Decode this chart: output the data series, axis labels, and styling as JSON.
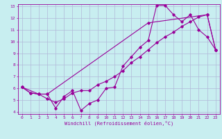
{
  "xlabel": "Windchill (Refroidissement éolien,°C)",
  "background_color": "#c8eef0",
  "grid_color": "#b0b8d8",
  "line_color": "#990099",
  "xlim": [
    -0.5,
    23.5
  ],
  "ylim": [
    3.8,
    13.2
  ],
  "xticks": [
    0,
    1,
    2,
    3,
    4,
    5,
    6,
    7,
    8,
    9,
    10,
    11,
    12,
    13,
    14,
    15,
    16,
    17,
    18,
    19,
    20,
    21,
    22,
    23
  ],
  "yticks": [
    4,
    5,
    6,
    7,
    8,
    9,
    10,
    11,
    12,
    13
  ],
  "line1_x": [
    0,
    1,
    2,
    3,
    4,
    5,
    6,
    7,
    8,
    9,
    10,
    11,
    12,
    13,
    14,
    15,
    16,
    17,
    18,
    19,
    20,
    21,
    22,
    23
  ],
  "line1_y": [
    6.1,
    5.6,
    5.5,
    5.5,
    4.3,
    5.3,
    5.8,
    4.1,
    4.7,
    5.0,
    6.0,
    6.1,
    7.9,
    8.7,
    9.5,
    10.1,
    13.1,
    13.1,
    12.3,
    11.7,
    12.3,
    11.0,
    10.4,
    9.3
  ],
  "line2_x": [
    0,
    1,
    2,
    3,
    4,
    5,
    6,
    7,
    8,
    9,
    10,
    11,
    12,
    13,
    14,
    15,
    16,
    17,
    18,
    19,
    20,
    21,
    22,
    23
  ],
  "line2_y": [
    6.1,
    5.6,
    5.5,
    5.1,
    4.8,
    5.1,
    5.6,
    5.8,
    5.8,
    6.3,
    6.6,
    7.0,
    7.5,
    8.2,
    8.7,
    9.3,
    9.9,
    10.4,
    10.8,
    11.3,
    11.7,
    12.1,
    12.3,
    9.3
  ],
  "line3_x": [
    0,
    2,
    3,
    15,
    22,
    23
  ],
  "line3_y": [
    6.1,
    5.5,
    5.5,
    11.6,
    12.3,
    9.3
  ],
  "marker": "D",
  "markersize": 1.8,
  "linewidth": 0.8,
  "xlabel_fontsize": 5.0,
  "tick_fontsize": 4.5
}
